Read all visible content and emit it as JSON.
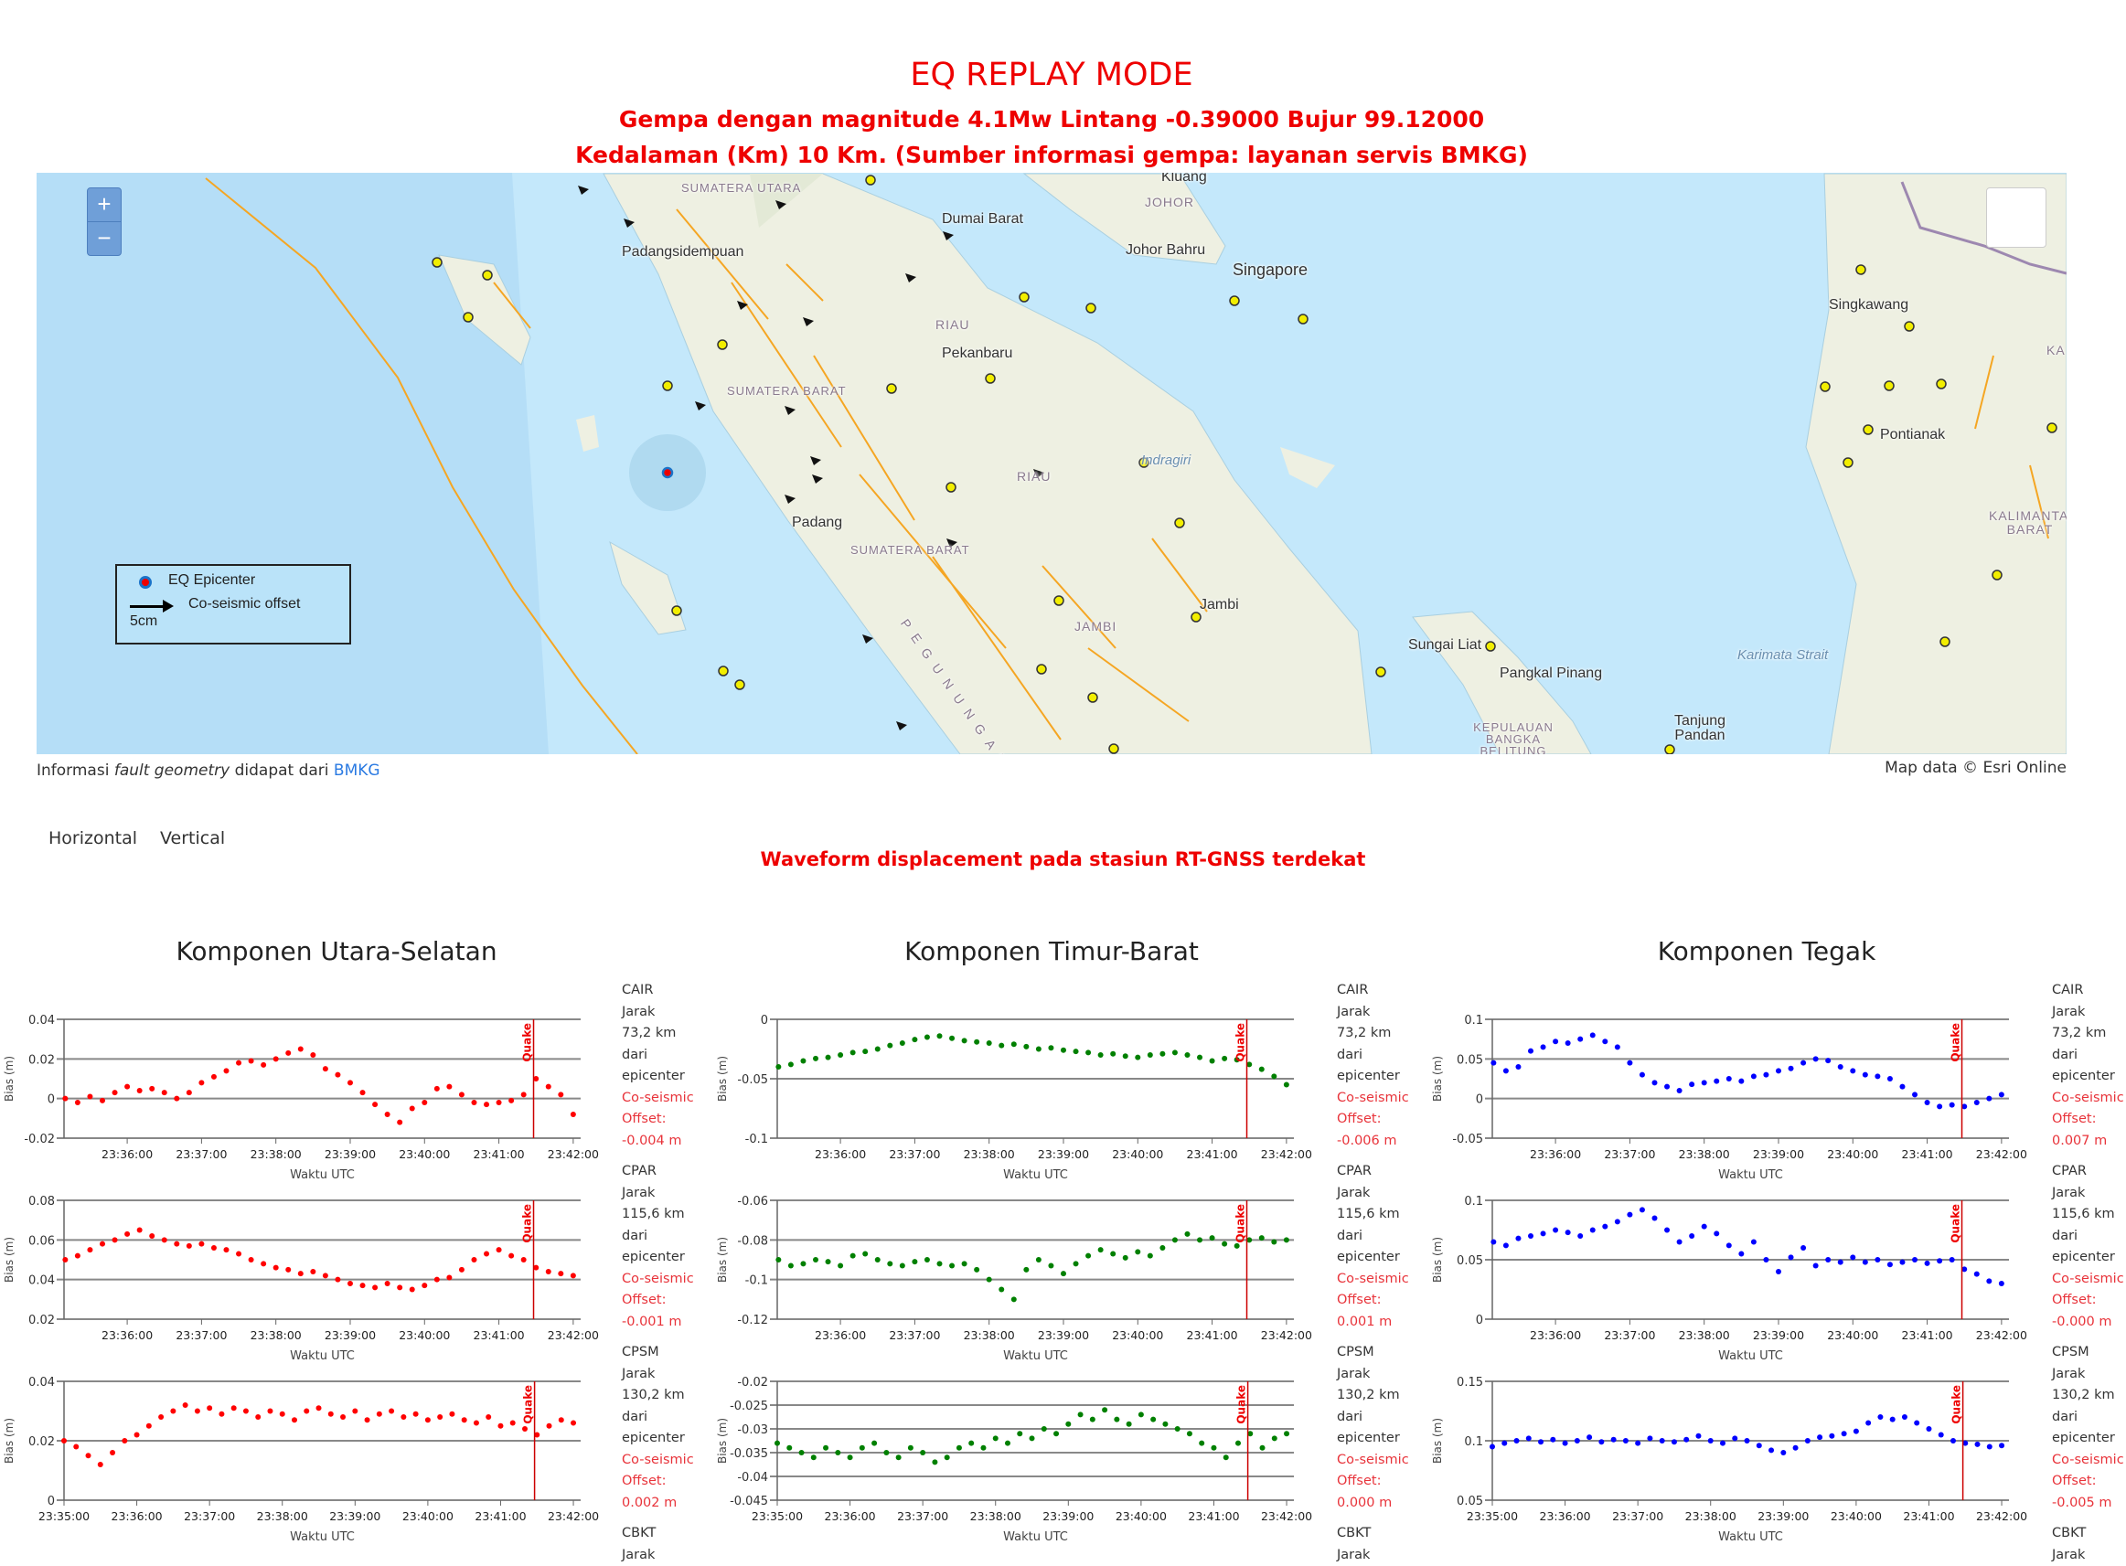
{
  "header": {
    "title": "EQ REPLAY MODE",
    "line1": "Gempa dengan magnitude 4.1Mw Lintang -0.39000 Bujur 99.12000",
    "line2": "Kedalaman (Km) 10 Km. (Sumber informasi gempa: layanan servis BMKG)"
  },
  "map": {
    "zoom_in": "+",
    "zoom_out": "−",
    "legend": {
      "epicenter": "EQ Epicenter",
      "offset": "Co-seismic offset",
      "scale": "5cm"
    },
    "labels": [
      "SUMATERA UTARA",
      "Padangsidempuan",
      "Dumai Barat",
      "Kluang",
      "JOHOR",
      "Johor Bahru",
      "Singapore",
      "RIAU",
      "Pekanbaru",
      "SUMATERA BARAT",
      "Indragiri",
      "RIAU",
      "Padang",
      "SUMATERA BARAT",
      "Jambi",
      "JAMBI",
      "Sungai Liat",
      "Pangkal Pinang",
      "Karimata Strait",
      "KEPULAUAN BANGKA BELITUNG",
      "Tanjung Pandan",
      "Singkawang",
      "Pontianak",
      "KALIMANTAN BARAT",
      "KA",
      "PEGUNUNGAN"
    ],
    "colors": {
      "sea": "#c4e8fb",
      "land": "#eef0e2",
      "fault": "#f5a623",
      "station": "#f2ee00",
      "epicenter": "#1a73c9"
    }
  },
  "caption": {
    "prefix": "Informasi ",
    "italic": "fault geometry",
    "middle": " didapat dari ",
    "link": "BMKG",
    "attribution": "Map data © Esri Online"
  },
  "tabs": [
    {
      "label": "Horizontal"
    },
    {
      "label": "Vertical"
    }
  ],
  "waveform_title": "Waveform displacement pada stasiun RT-GNSS terdekat",
  "columns": [
    {
      "title": "Komponen Utara-Selatan"
    },
    {
      "title": "Komponen Timur-Barat"
    },
    {
      "title": "Komponen Tegak"
    }
  ],
  "stations": [
    {
      "name": "CAIR",
      "jarak": "Jarak",
      "distance": "73,2 km",
      "dari": "dari",
      "epicenter": "epicenter",
      "cs": "Co-seismic",
      "off": "Offset:",
      "offsets": [
        "-0.004 m",
        "-0.006 m",
        "0.007 m"
      ]
    },
    {
      "name": "CPAR",
      "jarak": "Jarak",
      "distance": "115,6 km",
      "dari": "dari",
      "epicenter": "epicenter",
      "cs": "Co-seismic",
      "off": "Offset:",
      "offsets": [
        "-0.001 m",
        "0.001 m",
        "-0.000 m"
      ]
    },
    {
      "name": "CPSM",
      "jarak": "Jarak",
      "distance": "130,2 km",
      "dari": "dari",
      "epicenter": "epicenter",
      "cs": "Co-seismic",
      "off": "Offset:",
      "offsets": [
        "0.002 m",
        "0.000 m",
        "-0.005 m"
      ]
    },
    {
      "name": "CBKT",
      "jarak": "Jarak"
    }
  ],
  "chart_data": [
    {
      "type": "scatter",
      "station": "CAIR",
      "component": "Utara-Selatan",
      "color": "#ff0000",
      "xlabel": "Waktu UTC",
      "ylabel": "Bias (m)",
      "quake_label": "Quake",
      "quake_time": "23:41:28",
      "xlim": [
        "23:35:09",
        "23:42:06"
      ],
      "xticks": [
        "23:36:00",
        "23:37:00",
        "23:38:00",
        "23:39:00",
        "23:40:00",
        "23:41:00",
        "23:42:00"
      ],
      "ylim": [
        -0.02,
        0.04
      ],
      "yticks": [
        -0.02,
        0,
        0.02,
        0.04
      ],
      "ytick_labels": [
        "-0.02",
        "0",
        "0.02",
        "0.04"
      ],
      "x_start": "23:35:10",
      "x_step_s": 10,
      "y": [
        0.0,
        -0.002,
        0.001,
        -0.001,
        0.003,
        0.006,
        0.004,
        0.005,
        0.003,
        0.0,
        0.003,
        0.008,
        0.011,
        0.014,
        0.018,
        0.019,
        0.017,
        0.02,
        0.023,
        0.025,
        0.022,
        0.015,
        0.012,
        0.008,
        0.003,
        -0.003,
        -0.008,
        -0.012,
        -0.005,
        -0.002,
        0.005,
        0.006,
        0.002,
        -0.002,
        -0.003,
        -0.002,
        -0.001,
        0.002,
        0.01,
        0.006,
        0.002,
        -0.008
      ]
    },
    {
      "type": "scatter",
      "station": "CAIR",
      "component": "Timur-Barat",
      "color": "#008000",
      "xlabel": "Waktu UTC",
      "ylabel": "Bias (m)",
      "quake_label": "Quake",
      "quake_time": "23:41:28",
      "xlim": [
        "23:35:09",
        "23:42:06"
      ],
      "xticks": [
        "23:36:00",
        "23:37:00",
        "23:38:00",
        "23:39:00",
        "23:40:00",
        "23:41:00",
        "23:42:00"
      ],
      "ylim": [
        -0.1,
        0
      ],
      "yticks": [
        -0.1,
        -0.05,
        0
      ],
      "ytick_labels": [
        "-0.1",
        "-0.05",
        "0"
      ],
      "x_start": "23:35:10",
      "x_step_s": 10,
      "y": [
        -0.04,
        -0.038,
        -0.035,
        -0.033,
        -0.032,
        -0.03,
        -0.028,
        -0.027,
        -0.025,
        -0.022,
        -0.02,
        -0.017,
        -0.015,
        -0.014,
        -0.016,
        -0.018,
        -0.019,
        -0.02,
        -0.022,
        -0.021,
        -0.023,
        -0.025,
        -0.024,
        -0.026,
        -0.027,
        -0.028,
        -0.03,
        -0.029,
        -0.031,
        -0.032,
        -0.03,
        -0.029,
        -0.028,
        -0.03,
        -0.032,
        -0.035,
        -0.033,
        -0.034,
        -0.038,
        -0.042,
        -0.048,
        -0.055
      ]
    },
    {
      "type": "scatter",
      "station": "CAIR",
      "component": "Tegak",
      "color": "#0000ff",
      "xlabel": "Waktu UTC",
      "ylabel": "Bias (m)",
      "quake_label": "Quake",
      "quake_time": "23:41:28",
      "xlim": [
        "23:35:09",
        "23:42:06"
      ],
      "xticks": [
        "23:36:00",
        "23:37:00",
        "23:38:00",
        "23:39:00",
        "23:40:00",
        "23:41:00",
        "23:42:00"
      ],
      "ylim": [
        -0.05,
        0.1
      ],
      "yticks": [
        -0.05,
        0,
        0.05,
        0.1
      ],
      "ytick_labels": [
        "-0.05",
        "0",
        "0.05",
        "0.1"
      ],
      "x_start": "23:35:10",
      "x_step_s": 10,
      "y": [
        0.045,
        0.035,
        0.04,
        0.06,
        0.065,
        0.072,
        0.07,
        0.075,
        0.08,
        0.072,
        0.065,
        0.045,
        0.03,
        0.02,
        0.015,
        0.01,
        0.018,
        0.02,
        0.022,
        0.025,
        0.022,
        0.028,
        0.03,
        0.035,
        0.038,
        0.045,
        0.05,
        0.048,
        0.04,
        0.035,
        0.03,
        0.028,
        0.025,
        0.015,
        0.005,
        -0.005,
        -0.01,
        -0.008,
        -0.01,
        -0.005,
        0.0,
        0.005
      ]
    },
    {
      "type": "scatter",
      "station": "CPAR",
      "component": "Utara-Selatan",
      "color": "#ff0000",
      "xlabel": "Waktu UTC",
      "ylabel": "Bias (m)",
      "quake_label": "Quake",
      "quake_time": "23:41:28",
      "xlim": [
        "23:35:09",
        "23:42:06"
      ],
      "xticks": [
        "23:36:00",
        "23:37:00",
        "23:38:00",
        "23:39:00",
        "23:40:00",
        "23:41:00",
        "23:42:00"
      ],
      "ylim": [
        0.02,
        0.08
      ],
      "yticks": [
        0.02,
        0.04,
        0.06,
        0.08
      ],
      "ytick_labels": [
        "0.02",
        "0.04",
        "0.06",
        "0.08"
      ],
      "x_start": "23:35:10",
      "x_step_s": 10,
      "y": [
        0.05,
        0.052,
        0.055,
        0.058,
        0.06,
        0.063,
        0.065,
        0.062,
        0.06,
        0.058,
        0.057,
        0.058,
        0.056,
        0.055,
        0.053,
        0.05,
        0.048,
        0.046,
        0.045,
        0.043,
        0.044,
        0.042,
        0.04,
        0.038,
        0.037,
        0.036,
        0.038,
        0.036,
        0.035,
        0.037,
        0.04,
        0.041,
        0.045,
        0.05,
        0.053,
        0.055,
        0.052,
        0.05,
        0.046,
        0.044,
        0.043,
        0.042
      ]
    },
    {
      "type": "scatter",
      "station": "CPAR",
      "component": "Timur-Barat",
      "color": "#008000",
      "xlabel": "Waktu UTC",
      "ylabel": "Bias (m)",
      "quake_label": "Quake",
      "quake_time": "23:41:28",
      "xlim": [
        "23:35:09",
        "23:42:06"
      ],
      "xticks": [
        "23:36:00",
        "23:37:00",
        "23:38:00",
        "23:39:00",
        "23:40:00",
        "23:41:00",
        "23:42:00"
      ],
      "ylim": [
        -0.12,
        -0.06
      ],
      "yticks": [
        -0.12,
        -0.1,
        -0.08,
        -0.06
      ],
      "ytick_labels": [
        "-0.12",
        "-0.1",
        "-0.08",
        "-0.06"
      ],
      "x_start": "23:35:10",
      "x_step_s": 10,
      "y": [
        -0.09,
        -0.093,
        -0.092,
        -0.09,
        -0.091,
        -0.093,
        -0.088,
        -0.087,
        -0.09,
        -0.092,
        -0.093,
        -0.091,
        -0.09,
        -0.092,
        -0.093,
        -0.092,
        -0.095,
        -0.1,
        -0.105,
        -0.11,
        -0.095,
        -0.09,
        -0.093,
        -0.097,
        -0.092,
        -0.088,
        -0.085,
        -0.087,
        -0.089,
        -0.086,
        -0.088,
        -0.084,
        -0.08,
        -0.077,
        -0.08,
        -0.079,
        -0.082,
        -0.083,
        -0.08,
        -0.079,
        -0.081,
        -0.08
      ]
    },
    {
      "type": "scatter",
      "station": "CPAR",
      "component": "Tegak",
      "color": "#0000ff",
      "xlabel": "Waktu UTC",
      "ylabel": "Bias (m)",
      "quake_label": "Quake",
      "quake_time": "23:41:28",
      "xlim": [
        "23:35:09",
        "23:42:06"
      ],
      "xticks": [
        "23:36:00",
        "23:37:00",
        "23:38:00",
        "23:39:00",
        "23:40:00",
        "23:41:00",
        "23:42:00"
      ],
      "ylim": [
        0,
        0.1
      ],
      "yticks": [
        0,
        0.05,
        0.1
      ],
      "ytick_labels": [
        "0",
        "0.05",
        "0.1"
      ],
      "x_start": "23:35:10",
      "x_step_s": 10,
      "y": [
        0.065,
        0.062,
        0.068,
        0.07,
        0.072,
        0.075,
        0.073,
        0.07,
        0.075,
        0.078,
        0.082,
        0.088,
        0.092,
        0.085,
        0.075,
        0.065,
        0.07,
        0.078,
        0.072,
        0.062,
        0.055,
        0.065,
        0.05,
        0.04,
        0.052,
        0.06,
        0.045,
        0.05,
        0.048,
        0.052,
        0.048,
        0.05,
        0.046,
        0.048,
        0.05,
        0.047,
        0.049,
        0.05,
        0.042,
        0.038,
        0.032,
        0.03
      ]
    },
    {
      "type": "scatter",
      "station": "CPSM",
      "component": "Utara-Selatan",
      "color": "#ff0000",
      "xlabel": "Waktu UTC",
      "ylabel": "Bias (m)",
      "quake_label": "Quake",
      "quake_time": "23:41:28",
      "xlim": [
        "23:35:00",
        "23:42:06"
      ],
      "xticks": [
        "23:35:00",
        "23:36:00",
        "23:37:00",
        "23:38:00",
        "23:39:00",
        "23:40:00",
        "23:41:00",
        "23:42:00"
      ],
      "ylim": [
        0,
        0.04
      ],
      "yticks": [
        0,
        0.02,
        0.04
      ],
      "ytick_labels": [
        "0",
        "0.02",
        "0.04"
      ],
      "x_start": "23:35:00",
      "x_step_s": 10,
      "y": [
        0.02,
        0.018,
        0.015,
        0.012,
        0.016,
        0.02,
        0.022,
        0.025,
        0.028,
        0.03,
        0.032,
        0.03,
        0.031,
        0.029,
        0.031,
        0.03,
        0.028,
        0.03,
        0.029,
        0.027,
        0.03,
        0.031,
        0.029,
        0.028,
        0.03,
        0.027,
        0.029,
        0.03,
        0.028,
        0.029,
        0.027,
        0.028,
        0.029,
        0.027,
        0.026,
        0.028,
        0.025,
        0.026,
        0.024,
        0.022,
        0.025,
        0.027,
        0.026
      ]
    },
    {
      "type": "scatter",
      "station": "CPSM",
      "component": "Timur-Barat",
      "color": "#008000",
      "xlabel": "Waktu UTC",
      "ylabel": "Bias (m)",
      "quake_label": "Quake",
      "quake_time": "23:41:28",
      "xlim": [
        "23:35:00",
        "23:42:06"
      ],
      "xticks": [
        "23:35:00",
        "23:36:00",
        "23:37:00",
        "23:38:00",
        "23:39:00",
        "23:40:00",
        "23:41:00",
        "23:42:00"
      ],
      "ylim": [
        -0.045,
        -0.02
      ],
      "yticks": [
        -0.045,
        -0.04,
        -0.035,
        -0.03,
        -0.025,
        -0.02
      ],
      "ytick_labels": [
        "-0.045",
        "-0.04",
        "-0.035",
        "-0.03",
        "-0.025",
        "-0.02"
      ],
      "x_start": "23:35:00",
      "x_step_s": 10,
      "y": [
        -0.033,
        -0.034,
        -0.035,
        -0.036,
        -0.034,
        -0.035,
        -0.036,
        -0.034,
        -0.033,
        -0.035,
        -0.036,
        -0.034,
        -0.035,
        -0.037,
        -0.036,
        -0.034,
        -0.033,
        -0.034,
        -0.032,
        -0.033,
        -0.031,
        -0.032,
        -0.03,
        -0.031,
        -0.029,
        -0.027,
        -0.028,
        -0.026,
        -0.028,
        -0.029,
        -0.027,
        -0.028,
        -0.029,
        -0.03,
        -0.031,
        -0.033,
        -0.034,
        -0.036,
        -0.033,
        -0.031,
        -0.034,
        -0.032,
        -0.031
      ]
    },
    {
      "type": "scatter",
      "station": "CPSM",
      "component": "Tegak",
      "color": "#0000ff",
      "xlabel": "Waktu UTC",
      "ylabel": "Bias (m)",
      "quake_label": "Quake",
      "quake_time": "23:41:28",
      "xlim": [
        "23:35:00",
        "23:42:06"
      ],
      "xticks": [
        "23:35:00",
        "23:36:00",
        "23:37:00",
        "23:38:00",
        "23:39:00",
        "23:40:00",
        "23:41:00",
        "23:42:00"
      ],
      "ylim": [
        0.05,
        0.15
      ],
      "yticks": [
        0.05,
        0.1,
        0.15
      ],
      "ytick_labels": [
        "0.05",
        "0.1",
        "0.15"
      ],
      "x_start": "23:35:00",
      "x_step_s": 10,
      "y": [
        0.095,
        0.098,
        0.1,
        0.102,
        0.099,
        0.101,
        0.098,
        0.1,
        0.103,
        0.099,
        0.101,
        0.1,
        0.098,
        0.102,
        0.1,
        0.099,
        0.101,
        0.104,
        0.1,
        0.098,
        0.102,
        0.1,
        0.096,
        0.092,
        0.09,
        0.094,
        0.1,
        0.103,
        0.104,
        0.106,
        0.108,
        0.115,
        0.12,
        0.118,
        0.12,
        0.115,
        0.11,
        0.105,
        0.1,
        0.098,
        0.097,
        0.095,
        0.096
      ]
    }
  ]
}
